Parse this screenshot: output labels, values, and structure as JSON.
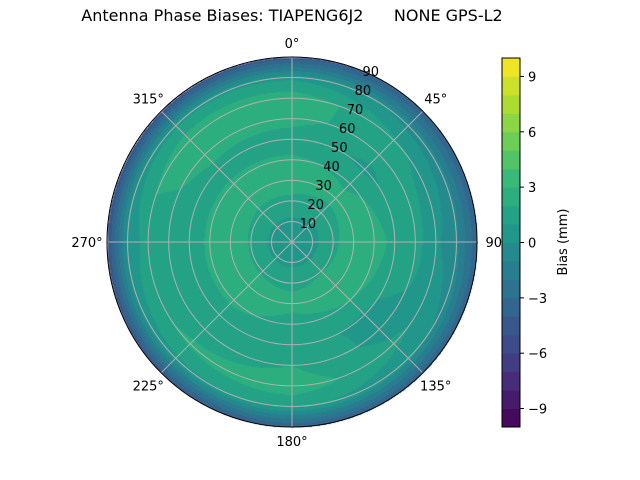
{
  "chart_data": {
    "type": "heatmap",
    "subtype": "polar-filled-contour",
    "title": "Antenna Phase Biases: TIAPENG6J2      NONE GPS-L2",
    "colorbar": {
      "label": "Bias (mm)",
      "range": [
        -10,
        10
      ],
      "levels_step": 1,
      "ticks": [
        -9,
        -6,
        -3,
        0,
        3,
        6,
        9
      ],
      "tick_labels": [
        "−9",
        "−6",
        "−3",
        "0",
        "3",
        "6",
        "9"
      ],
      "colormap": "viridis"
    },
    "angular_axis": {
      "direction": "clockwise",
      "zero_location": "north",
      "ticks": [
        0,
        45,
        90,
        135,
        180,
        225,
        270,
        315
      ],
      "tick_labels": [
        "0°",
        "45°",
        "90°",
        "135°",
        "180°",
        "225°",
        "270°",
        "315°"
      ]
    },
    "radial_axis": {
      "range": [
        0,
        90
      ],
      "ticks": [
        10,
        20,
        30,
        40,
        50,
        60,
        70,
        80,
        90
      ],
      "tick_labels": [
        "10",
        "20",
        "30",
        "40",
        "50",
        "60",
        "70",
        "80",
        "90"
      ]
    },
    "grid": true,
    "azimuth_deg": [
      0,
      45,
      90,
      135,
      180,
      225,
      270,
      315
    ],
    "zenith_deg": [
      0,
      10,
      20,
      30,
      40,
      50,
      60,
      70,
      80,
      90
    ],
    "bias_mm": [
      [
        0.5,
        0.8,
        1.8,
        2.4,
        2.2,
        1.4,
        2.4,
        2.6,
        0.8,
        -4.5
      ],
      [
        0.5,
        0.7,
        1.6,
        2.3,
        1.8,
        0.8,
        1.3,
        1.2,
        -0.3,
        -4.0
      ],
      [
        0.5,
        0.7,
        1.8,
        2.6,
        2.6,
        1.6,
        1.4,
        0.2,
        -0.8,
        -3.8
      ],
      [
        0.5,
        0.8,
        2.0,
        2.5,
        2.0,
        0.8,
        0.6,
        1.2,
        0.3,
        -4.0
      ],
      [
        0.5,
        0.8,
        1.8,
        2.3,
        1.6,
        1.3,
        2.0,
        2.6,
        1.2,
        -4.2
      ],
      [
        0.5,
        0.8,
        1.9,
        2.5,
        2.3,
        1.2,
        1.4,
        2.2,
        0.8,
        -4.5
      ],
      [
        0.5,
        0.8,
        1.9,
        2.6,
        2.4,
        1.0,
        1.2,
        1.4,
        0.4,
        -5.0
      ],
      [
        0.5,
        0.8,
        1.8,
        2.4,
        2.2,
        1.5,
        2.6,
        2.8,
        0.9,
        -4.8
      ]
    ]
  }
}
